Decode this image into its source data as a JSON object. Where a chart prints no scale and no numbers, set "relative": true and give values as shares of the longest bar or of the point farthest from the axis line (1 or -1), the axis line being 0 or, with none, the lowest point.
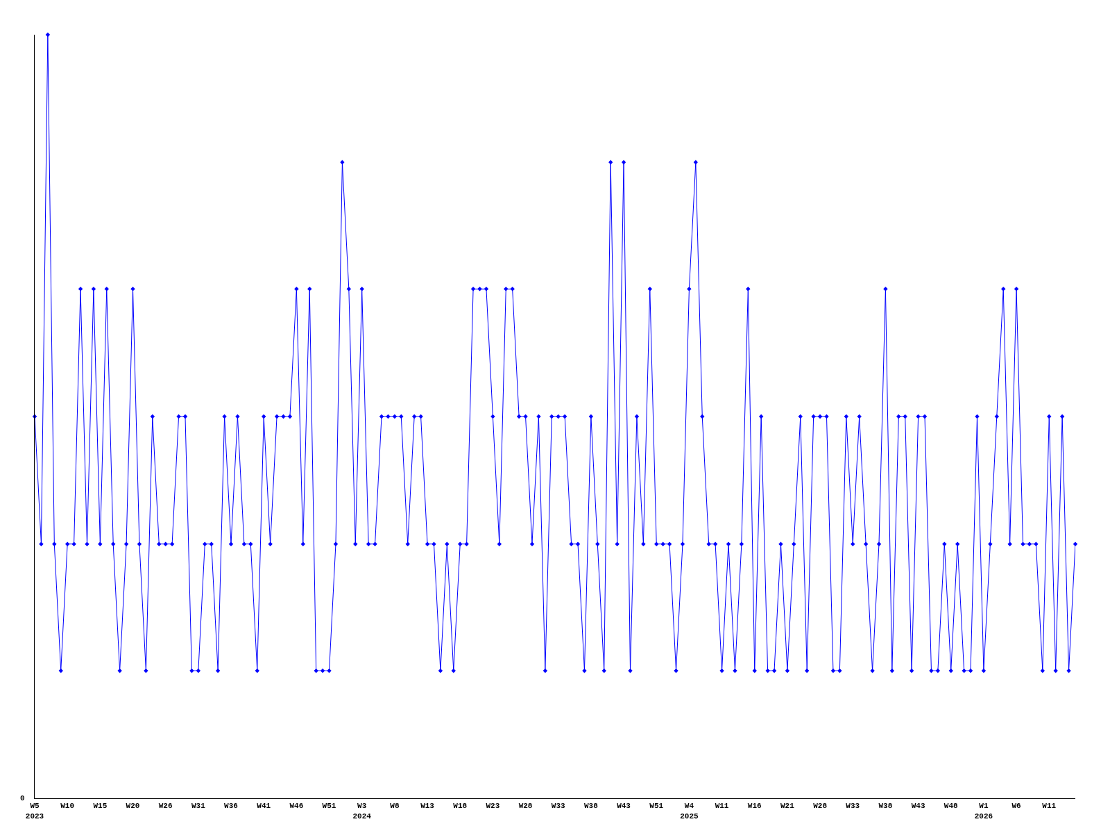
{
  "chart_data": {
    "type": "line",
    "relative": true,
    "marker": "diamond",
    "line_style": "solid",
    "annotations": [
      "0"
    ],
    "categories": [
      "W5\n2023",
      null,
      null,
      null,
      null,
      "W10",
      null,
      null,
      null,
      null,
      "W15",
      null,
      null,
      null,
      null,
      "W20",
      null,
      null,
      null,
      null,
      "W26",
      null,
      null,
      null,
      null,
      "W31",
      null,
      null,
      null,
      null,
      "W36",
      null,
      null,
      null,
      null,
      "W41",
      null,
      null,
      null,
      null,
      "W46",
      null,
      null,
      null,
      null,
      "W51",
      null,
      null,
      null,
      null,
      "W3\n2024",
      null,
      null,
      null,
      null,
      "W8",
      null,
      null,
      null,
      null,
      "W13",
      null,
      null,
      null,
      null,
      "W18",
      null,
      null,
      null,
      null,
      "W23",
      null,
      null,
      null,
      null,
      "W28",
      null,
      null,
      null,
      null,
      "W33",
      null,
      null,
      null,
      null,
      "W38",
      null,
      null,
      null,
      null,
      "W43",
      null,
      null,
      null,
      null,
      "W51",
      null,
      null,
      null,
      null,
      "W4\n2025",
      null,
      null,
      null,
      null,
      "W11",
      null,
      null,
      null,
      null,
      "W16",
      null,
      null,
      null,
      null,
      "W21",
      null,
      null,
      null,
      null,
      "W28",
      null,
      null,
      null,
      null,
      "W33",
      null,
      null,
      null,
      null,
      "W38",
      null,
      null,
      null,
      null,
      "W43",
      null,
      null,
      null,
      null,
      "W48",
      null,
      null,
      null,
      null,
      "W1\n2026",
      null,
      null,
      null,
      null,
      "W6",
      null,
      null,
      null,
      null,
      "W11",
      null,
      null,
      null,
      null
    ],
    "series": [
      {
        "color": "#0000ff",
        "values": [
          0.5,
          0.333,
          1,
          0.333,
          0.167,
          0.333,
          0.333,
          0.667,
          0.333,
          0.667,
          0.333,
          0.667,
          0.333,
          0.167,
          0.333,
          0.667,
          0.333,
          0.167,
          0.5,
          0.333,
          0.333,
          0.333,
          0.5,
          0.5,
          0.167,
          0.167,
          0.333,
          0.333,
          0.167,
          0.5,
          0.333,
          0.5,
          0.333,
          0.333,
          0.167,
          0.5,
          0.333,
          0.5,
          0.5,
          0.5,
          0.667,
          0.333,
          0.667,
          0.167,
          0.167,
          0.167,
          0.333,
          0.833,
          0.667,
          0.333,
          0.667,
          0.333,
          0.333,
          0.5,
          0.5,
          0.5,
          0.5,
          0.333,
          0.5,
          0.5,
          0.333,
          0.333,
          0.167,
          0.333,
          0.167,
          0.333,
          0.333,
          0.667,
          0.667,
          0.667,
          0.5,
          0.333,
          0.667,
          0.667,
          0.5,
          0.5,
          0.333,
          0.5,
          0.167,
          0.5,
          0.5,
          0.5,
          0.333,
          0.333,
          0.167,
          0.5,
          0.333,
          0.167,
          0.833,
          0.333,
          0.833,
          0.167,
          0.5,
          0.333,
          0.667,
          0.333,
          0.333,
          0.333,
          0.167,
          0.333,
          0.667,
          0.833,
          0.5,
          0.333,
          0.333,
          0.167,
          0.333,
          0.167,
          0.333,
          0.667,
          0.167,
          0.5,
          0.167,
          0.167,
          0.333,
          0.167,
          0.333,
          0.5,
          0.167,
          0.5,
          0.5,
          0.5,
          0.167,
          0.167,
          0.5,
          0.333,
          0.5,
          0.333,
          0.167,
          0.333,
          0.667,
          0.167,
          0.5,
          0.5,
          0.167,
          0.5,
          0.5,
          0.167,
          0.167,
          0.333,
          0.167,
          0.333,
          0.167,
          0.167,
          0.5,
          0.167,
          0.333,
          0.5,
          0.667,
          0.333,
          0.667,
          0.333,
          0.333,
          0.333,
          0.167,
          0.5,
          0.167,
          0.5,
          0.167,
          0.333
        ]
      }
    ]
  }
}
